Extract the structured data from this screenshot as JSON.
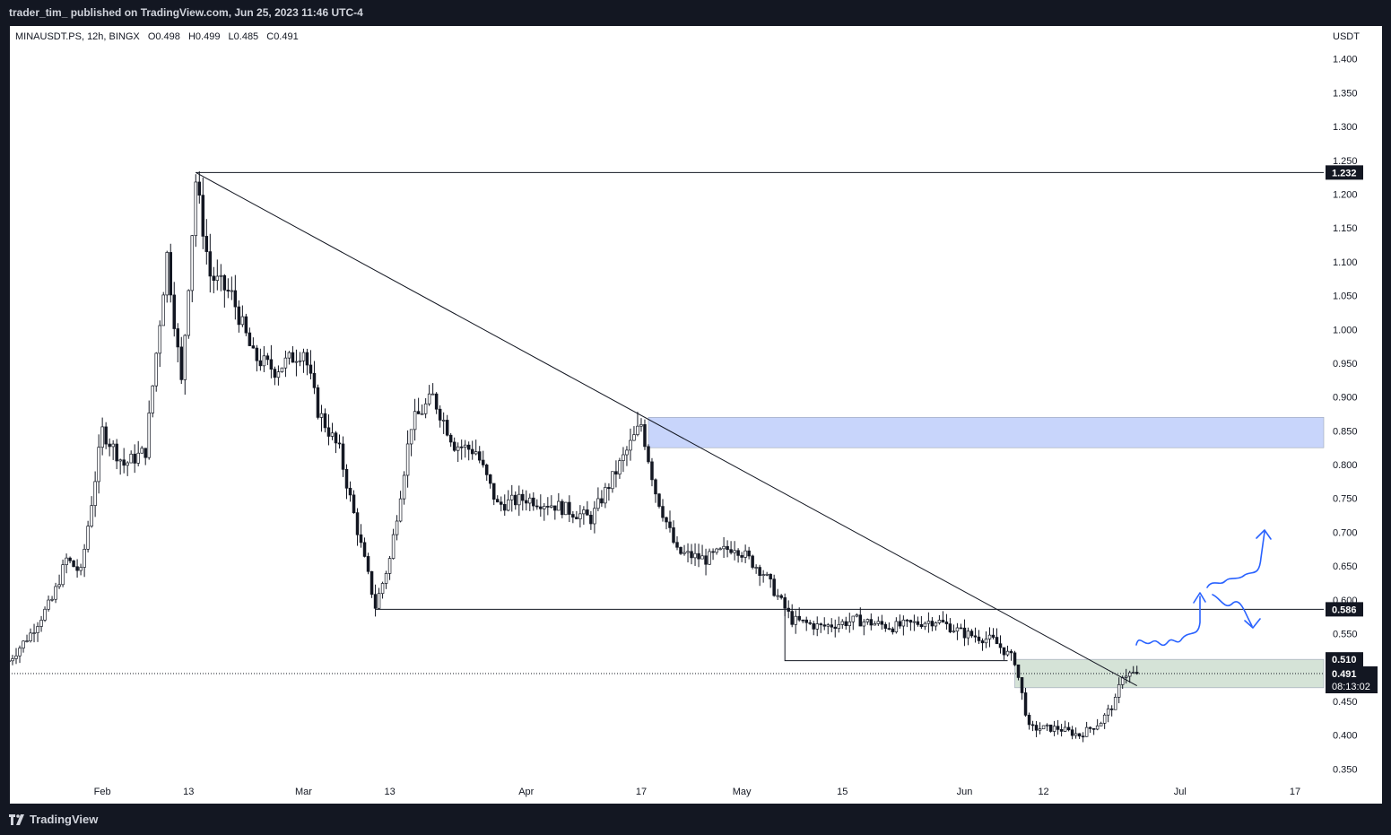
{
  "header": {
    "text": "trader_tim_ published on TradingView.com, Jun 25, 2023 11:46 UTC-4"
  },
  "legend": {
    "symbol": "MINAUSDT.PS, 12h, BINGX",
    "open": "O0.498",
    "high": "H0.499",
    "low": "L0.485",
    "close": "C0.491"
  },
  "footer": {
    "brand": "TradingView"
  },
  "chart_data": {
    "type": "candlestick",
    "symbol": "MINAUSDT.PS",
    "interval": "12h",
    "exchange": "BINGX",
    "y_axis": {
      "unit": "USDT",
      "ylim": [
        0.3,
        1.45
      ],
      "ticks": [
        "1.400",
        "1.350",
        "1.300",
        "1.250",
        "1.200",
        "1.150",
        "1.100",
        "1.050",
        "1.000",
        "0.950",
        "0.900",
        "0.850",
        "0.800",
        "0.750",
        "0.700",
        "0.650",
        "0.600",
        "0.550",
        "0.500",
        "0.450",
        "0.400",
        "0.350"
      ]
    },
    "x_axis": {
      "start": "2023-01-19",
      "end": "2023-07-21",
      "ticks": [
        {
          "label": "Feb",
          "date": "2023-02-01"
        },
        {
          "label": "13",
          "date": "2023-02-13"
        },
        {
          "label": "Mar",
          "date": "2023-03-01"
        },
        {
          "label": "13",
          "date": "2023-03-13"
        },
        {
          "label": "Apr",
          "date": "2023-04-01"
        },
        {
          "label": "17",
          "date": "2023-04-17"
        },
        {
          "label": "May",
          "date": "2023-05-01"
        },
        {
          "label": "15",
          "date": "2023-05-15"
        },
        {
          "label": "Jun",
          "date": "2023-06-01"
        },
        {
          "label": "12",
          "date": "2023-06-12"
        },
        {
          "label": "Jul",
          "date": "2023-07-01"
        },
        {
          "label": "17",
          "date": "2023-07-17"
        }
      ]
    },
    "close_path": [
      [
        "2023-01-19",
        0.51
      ],
      [
        "2023-01-22",
        0.55
      ],
      [
        "2023-01-25",
        0.6
      ],
      [
        "2023-01-27",
        0.66
      ],
      [
        "2023-01-29",
        0.64
      ],
      [
        "2023-02-01",
        0.85
      ],
      [
        "2023-02-04",
        0.8
      ],
      [
        "2023-02-07",
        0.82
      ],
      [
        "2023-02-10",
        1.11
      ],
      [
        "2023-02-12",
        0.92
      ],
      [
        "2023-02-14",
        1.22
      ],
      [
        "2023-02-16",
        1.08
      ],
      [
        "2023-02-19",
        1.05
      ],
      [
        "2023-02-22",
        0.96
      ],
      [
        "2023-02-25",
        0.94
      ],
      [
        "2023-03-01",
        0.97
      ],
      [
        "2023-03-03",
        0.88
      ],
      [
        "2023-03-06",
        0.82
      ],
      [
        "2023-03-09",
        0.68
      ],
      [
        "2023-03-11",
        0.59
      ],
      [
        "2023-03-13",
        0.66
      ],
      [
        "2023-03-16",
        0.86
      ],
      [
        "2023-03-19",
        0.9
      ],
      [
        "2023-03-22",
        0.83
      ],
      [
        "2023-03-25",
        0.82
      ],
      [
        "2023-03-28",
        0.74
      ],
      [
        "2023-04-01",
        0.75
      ],
      [
        "2023-04-05",
        0.74
      ],
      [
        "2023-04-10",
        0.72
      ],
      [
        "2023-04-14",
        0.8
      ],
      [
        "2023-04-17",
        0.86
      ],
      [
        "2023-04-19",
        0.76
      ],
      [
        "2023-04-22",
        0.67
      ],
      [
        "2023-04-26",
        0.66
      ],
      [
        "2023-04-30",
        0.68
      ],
      [
        "2023-05-04",
        0.64
      ],
      [
        "2023-05-08",
        0.57
      ],
      [
        "2023-05-12",
        0.56
      ],
      [
        "2023-05-17",
        0.57
      ],
      [
        "2023-05-22",
        0.56
      ],
      [
        "2023-05-28",
        0.57
      ],
      [
        "2023-06-01",
        0.55
      ],
      [
        "2023-06-05",
        0.54
      ],
      [
        "2023-06-08",
        0.51
      ],
      [
        "2023-06-10",
        0.41
      ],
      [
        "2023-06-14",
        0.41
      ],
      [
        "2023-06-17",
        0.4
      ],
      [
        "2023-06-20",
        0.42
      ],
      [
        "2023-06-22",
        0.45
      ],
      [
        "2023-06-23",
        0.49
      ],
      [
        "2023-06-25",
        0.491
      ]
    ],
    "annotations": {
      "horizontal_levels": [
        {
          "from": "2023-02-14",
          "price": 1.232,
          "label": "1.232"
        },
        {
          "from": "2023-03-11",
          "price": 0.586,
          "label": "0.586"
        }
      ],
      "range_line": {
        "from": "2023-05-07",
        "to": "2023-06-07",
        "price": 0.51
      },
      "trendline": {
        "from": [
          "2023-02-14",
          1.232
        ],
        "to": [
          "2023-06-25",
          0.473
        ]
      },
      "supply_zone": {
        "from": "2023-04-18",
        "to": "2023-07-21",
        "low": 0.825,
        "high": 0.87,
        "color": "#c8d5fb"
      },
      "demand_zone": {
        "from": "2023-06-08",
        "to": "2023-07-21",
        "low": 0.47,
        "high": 0.512,
        "color": "#d5e3d7"
      },
      "current_price": {
        "value": 0.491,
        "label": "0.491",
        "countdown": "08:13:02"
      },
      "zone_label": "0.510",
      "projection_color": "#2962ff"
    },
    "colors": {
      "background": "#ffffff",
      "candle": "#131722",
      "text": "#131722"
    },
    "grid": false
  }
}
